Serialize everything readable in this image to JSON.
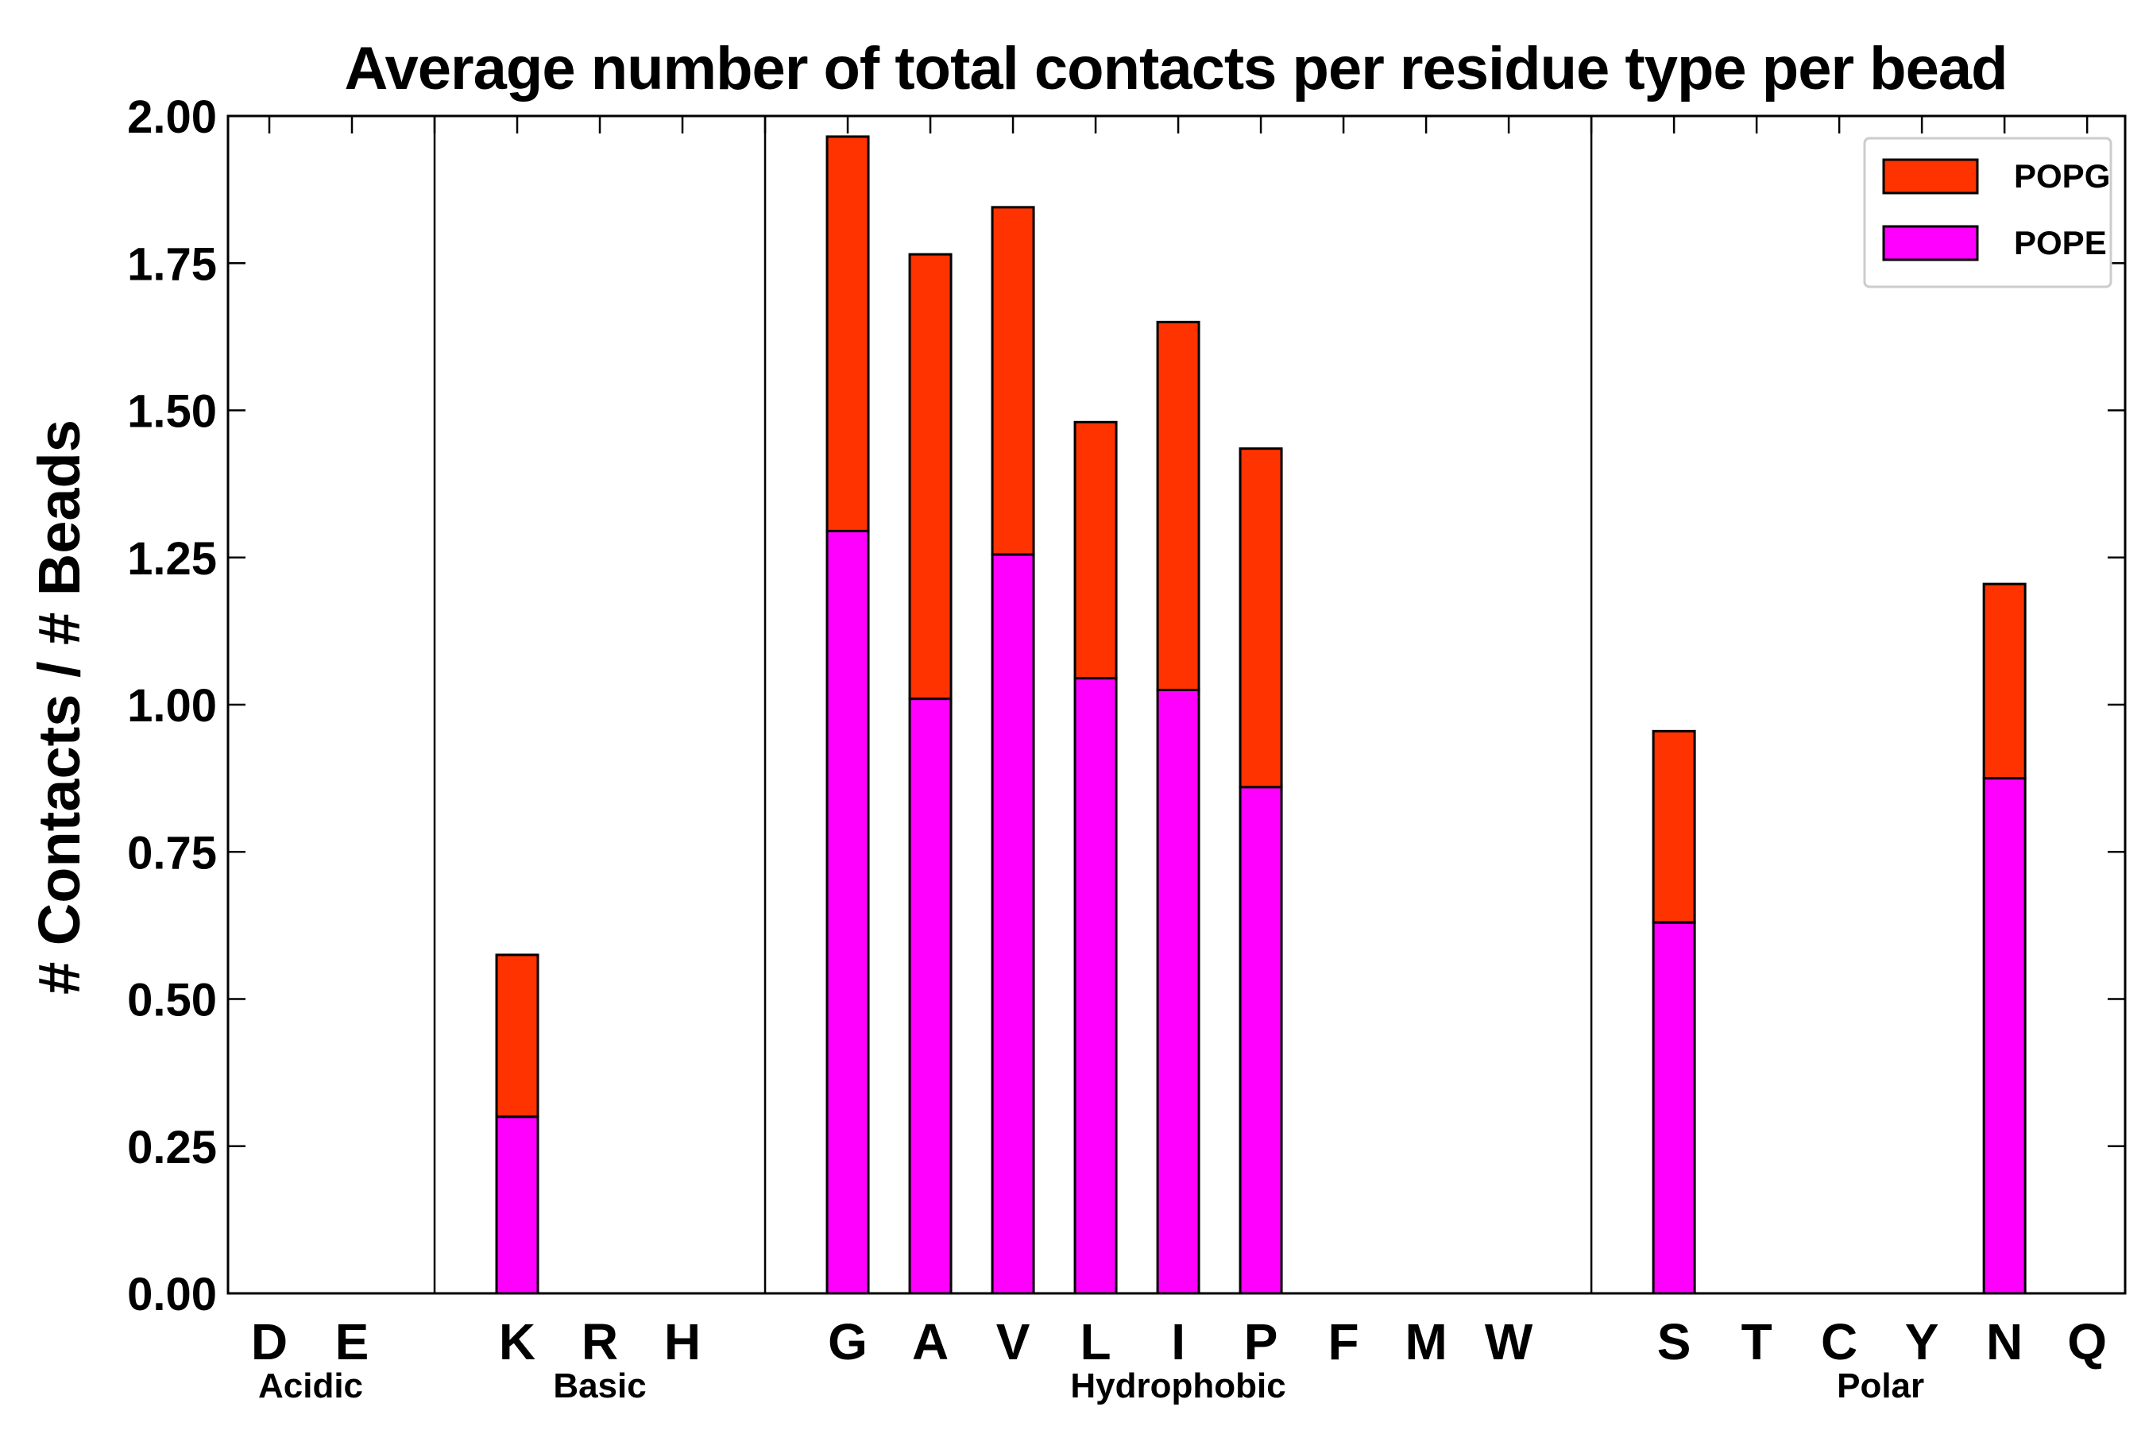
{
  "chart_data": {
    "type": "bar",
    "stacked": true,
    "title": "Average number of total contacts per residue type per bead",
    "xlabel": "",
    "ylabel": "# Contacts / # Beads",
    "ylim": [
      0,
      2.0
    ],
    "yticks": [
      0.0,
      0.25,
      0.5,
      0.75,
      1.0,
      1.25,
      1.5,
      1.75,
      2.0
    ],
    "ytick_labels": [
      "0.00",
      "0.25",
      "0.50",
      "0.75",
      "1.00",
      "1.25",
      "1.50",
      "1.75",
      "2.00"
    ],
    "grid": false,
    "legend_position": "top-right",
    "categories": [
      "D",
      "E",
      "",
      "K",
      "R",
      "H",
      "",
      "G",
      "A",
      "V",
      "L",
      "I",
      "P",
      "F",
      "M",
      "W",
      "",
      "S",
      "T",
      "C",
      "Y",
      "N",
      "Q"
    ],
    "series": [
      {
        "name": "POPE",
        "color": "#ff00ff",
        "values": [
          0,
          0,
          0,
          0.3,
          0,
          0,
          0,
          1.295,
          1.01,
          1.255,
          1.045,
          1.025,
          0.86,
          0,
          0,
          0,
          0,
          0.63,
          0,
          0,
          0,
          0.875,
          0
        ]
      },
      {
        "name": "POPG",
        "color": "#ff3300",
        "values": [
          0,
          0,
          0,
          0.275,
          0,
          0,
          0,
          0.67,
          0.755,
          0.59,
          0.435,
          0.625,
          0.575,
          0,
          0,
          0,
          0,
          0.325,
          0,
          0,
          0,
          0.33,
          0
        ]
      }
    ],
    "groups": [
      {
        "label": "Acidic",
        "categories": [
          "D",
          "E"
        ]
      },
      {
        "label": "Basic",
        "categories": [
          "K",
          "R",
          "H"
        ]
      },
      {
        "label": "Hydrophobic",
        "categories": [
          "G",
          "A",
          "V",
          "L",
          "I",
          "P",
          "F",
          "M",
          "W"
        ]
      },
      {
        "label": "Polar",
        "categories": [
          "S",
          "T",
          "C",
          "Y",
          "N",
          "Q"
        ]
      }
    ],
    "legend": [
      "POPG",
      "POPE"
    ],
    "frame_color": "#000000",
    "bar_edge_color": "#000000"
  }
}
